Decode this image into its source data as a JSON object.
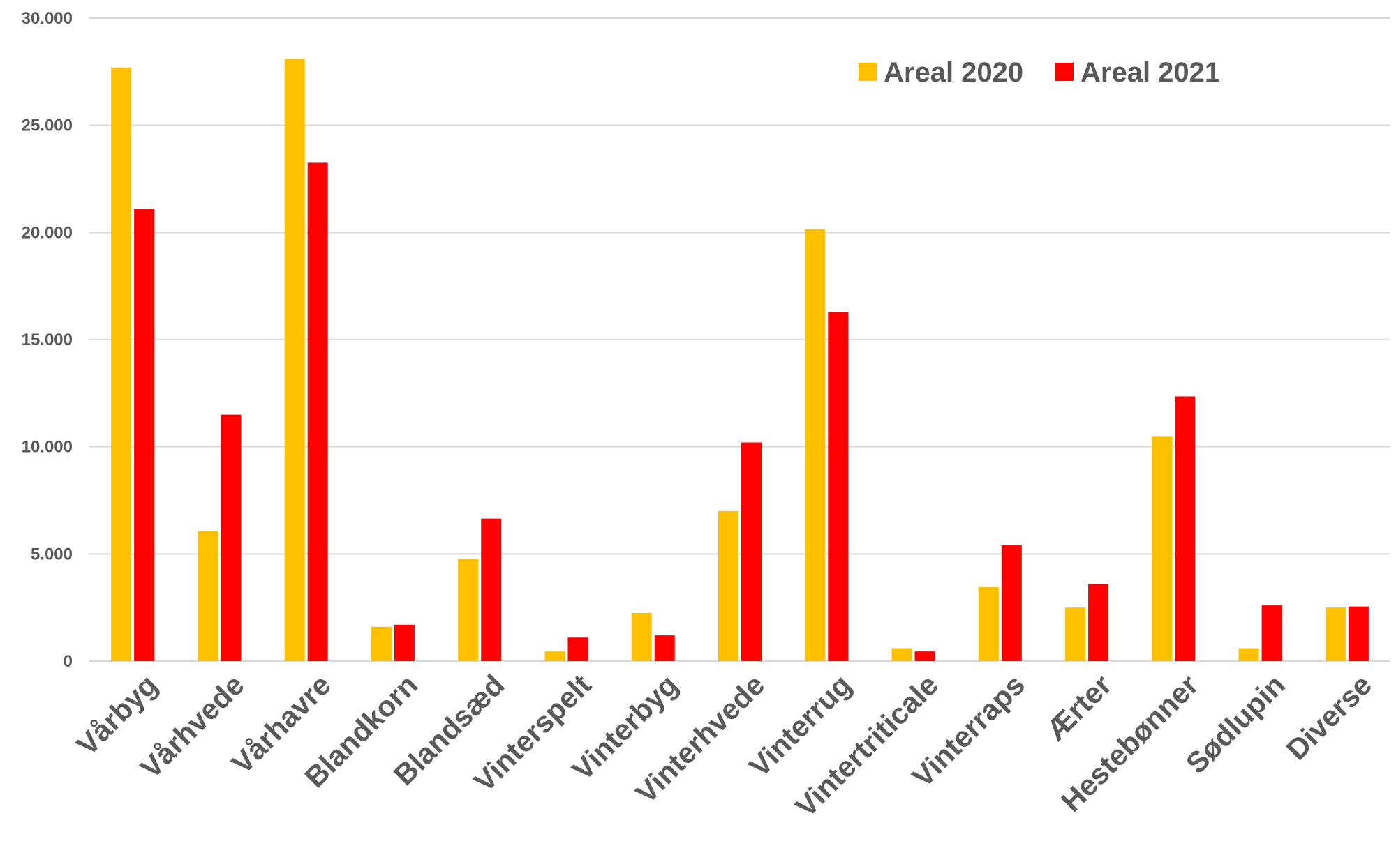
{
  "chart_data": {
    "type": "bar",
    "title": "",
    "xlabel": "",
    "ylabel": "",
    "ylim": [
      0,
      30000
    ],
    "yticks": [
      0,
      5000,
      10000,
      15000,
      20000,
      25000,
      30000
    ],
    "ytick_labels": [
      "0",
      "5.000",
      "10.000",
      "15.000",
      "20.000",
      "25.000",
      "30.000"
    ],
    "grid": true,
    "legend_position": "top-right",
    "categories": [
      "Vårbyg",
      "Vårhvede",
      "Vårhavre",
      "Blandkorn",
      "Blandsæd",
      "Vinterspelt",
      "Vinterbyg",
      "Vinterhvede",
      "Vinterrug",
      "Vintertriticale",
      "Vinterraps",
      "Ærter",
      "Hestebønner",
      "Sødlupin",
      "Diverse"
    ],
    "series": [
      {
        "name": "Areal 2020",
        "color": "#FFC000",
        "values": [
          27700,
          6050,
          28100,
          1600,
          4750,
          450,
          2250,
          7000,
          20150,
          600,
          3450,
          2500,
          10500,
          600,
          2500
        ]
      },
      {
        "name": "Areal 2021",
        "color": "#FF0000",
        "values": [
          21100,
          11500,
          23250,
          1700,
          6650,
          1100,
          1200,
          10200,
          16300,
          450,
          5400,
          3600,
          12350,
          2600,
          2550
        ]
      }
    ]
  }
}
